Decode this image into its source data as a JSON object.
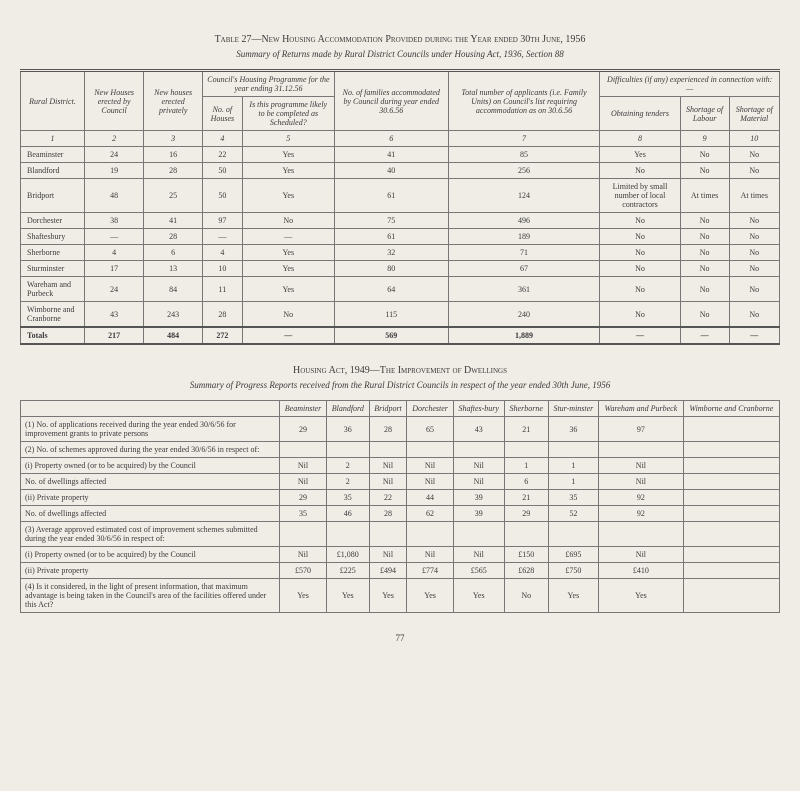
{
  "table27": {
    "caption": "Table 27—New Housing Accommodation Provided during the Year ended 30th June, 1956",
    "subcaption": "Summary of Returns made by Rural District Councils under Housing Act, 1936, Section 88",
    "head": {
      "c1": "Rural District.",
      "c2": "New Houses erected by Council",
      "c3": "New houses erected privately",
      "group_prog": "Council's Housing Programme for the year ending 31.12.56",
      "c4": "No. of Houses",
      "c5": "Is this programme likely to be completed as Scheduled?",
      "c6": "No. of families accommodated by Council during year ended 30.6.56",
      "c7": "Total number of applicants (i.e. Family Units) on Council's list requiring accommodation as on 30.6.56",
      "group_diff": "Difficulties (if any) experienced in connection with:—",
      "c8": "Obtaining tenders",
      "c9": "Shortage of Labour",
      "c10": "Shortage of Material",
      "n1": "1",
      "n2": "2",
      "n3": "3",
      "n4": "4",
      "n5": "5",
      "n6": "6",
      "n7": "7",
      "n8": "8",
      "n9": "9",
      "n10": "10"
    },
    "rows": [
      {
        "d": "Beaminster",
        "c2": "24",
        "c3": "16",
        "c4": "22",
        "c5": "Yes",
        "c6": "41",
        "c7": "85",
        "c8": "Yes",
        "c9": "No",
        "c10": "No"
      },
      {
        "d": "Blandford",
        "c2": "19",
        "c3": "28",
        "c4": "50",
        "c5": "Yes",
        "c6": "40",
        "c7": "256",
        "c8": "No",
        "c9": "No",
        "c10": "No"
      },
      {
        "d": "Bridport",
        "c2": "48",
        "c3": "25",
        "c4": "50",
        "c5": "Yes",
        "c6": "61",
        "c7": "124",
        "c8": "Limited by small number of local contractors",
        "c9": "At times",
        "c10": "At times"
      },
      {
        "d": "Dorchester",
        "c2": "38",
        "c3": "41",
        "c4": "97",
        "c5": "No",
        "c6": "75",
        "c7": "496",
        "c8": "No",
        "c9": "No",
        "c10": "No"
      },
      {
        "d": "Shaftesbury",
        "c2": "—",
        "c3": "28",
        "c4": "—",
        "c5": "—",
        "c6": "61",
        "c7": "189",
        "c8": "No",
        "c9": "No",
        "c10": "No"
      },
      {
        "d": "Sherborne",
        "c2": "4",
        "c3": "6",
        "c4": "4",
        "c5": "Yes",
        "c6": "32",
        "c7": "71",
        "c8": "No",
        "c9": "No",
        "c10": "No"
      },
      {
        "d": "Sturminster",
        "c2": "17",
        "c3": "13",
        "c4": "10",
        "c5": "Yes",
        "c6": "80",
        "c7": "67",
        "c8": "No",
        "c9": "No",
        "c10": "No"
      },
      {
        "d": "Wareham and Purbeck",
        "c2": "24",
        "c3": "84",
        "c4": "11",
        "c5": "Yes",
        "c6": "64",
        "c7": "361",
        "c8": "No",
        "c9": "No",
        "c10": "No"
      },
      {
        "d": "Wimborne and Cranborne",
        "c2": "43",
        "c3": "243",
        "c4": "28",
        "c5": "No",
        "c6": "115",
        "c7": "240",
        "c8": "No",
        "c9": "No",
        "c10": "No"
      }
    ],
    "totals": {
      "d": "Totals",
      "c2": "217",
      "c3": "484",
      "c4": "272",
      "c5": "—",
      "c6": "569",
      "c7": "1,889",
      "c8": "—",
      "c9": "—",
      "c10": "—"
    }
  },
  "table2": {
    "caption": "Housing Act, 1949—The Improvement of Dwellings",
    "subcaption": "Summary of Progress Reports received from the Rural District Councils in respect of the year ended 30th June, 1956",
    "cols": [
      "Beaminster",
      "Blandford",
      "Bridport",
      "Dorchester",
      "Shaftes-bury",
      "Sherborne",
      "Stur-minster",
      "Wareham and Purbeck",
      "Wimborne and Cranborne"
    ],
    "rows": [
      {
        "label": "(1) No. of applications received during the year ended 30/6/56 for improvement grants to private persons",
        "v": [
          "29",
          "36",
          "28",
          "65",
          "43",
          "21",
          "36",
          "97",
          ""
        ]
      },
      {
        "label": "(2) No. of schemes approved during the year ended 30/6/56 in respect of:",
        "v": [
          "",
          "",
          "",
          "",
          "",
          "",
          "",
          "",
          ""
        ]
      },
      {
        "label": "(i) Property owned (or to be acquired) by the Council",
        "v": [
          "Nil",
          "2",
          "Nil",
          "Nil",
          "Nil",
          "1",
          "1",
          "Nil",
          ""
        ]
      },
      {
        "label": "    No. of dwellings affected",
        "v": [
          "Nil",
          "2",
          "Nil",
          "Nil",
          "Nil",
          "6",
          "1",
          "Nil",
          ""
        ]
      },
      {
        "label": "(ii) Private property",
        "v": [
          "29",
          "35",
          "22",
          "44",
          "39",
          "21",
          "35",
          "92",
          ""
        ]
      },
      {
        "label": "    No. of dwellings affected",
        "v": [
          "35",
          "46",
          "28",
          "62",
          "39",
          "29",
          "52",
          "92",
          ""
        ]
      },
      {
        "label": "(3) Average approved estimated cost of improvement schemes submitted during the year ended 30/6/56 in respect of:",
        "v": [
          "",
          "",
          "",
          "",
          "",
          "",
          "",
          "",
          ""
        ]
      },
      {
        "label": "(i) Property owned (or to be acquired) by the Council",
        "v": [
          "Nil",
          "£1,080",
          "Nil",
          "Nil",
          "Nil",
          "£150",
          "£695",
          "Nil",
          ""
        ]
      },
      {
        "label": "(ii) Private property",
        "v": [
          "£570",
          "£225",
          "£494",
          "£774",
          "£565",
          "£628",
          "£750",
          "£410",
          ""
        ]
      },
      {
        "label": "(4) Is it considered, in the light of present information, that maximum advantage is being taken in the Council's area of the facilities offered under this Act?",
        "v": [
          "Yes",
          "Yes",
          "Yes",
          "Yes",
          "Yes",
          "No",
          "Yes",
          "Yes",
          ""
        ]
      }
    ]
  },
  "page": "77"
}
